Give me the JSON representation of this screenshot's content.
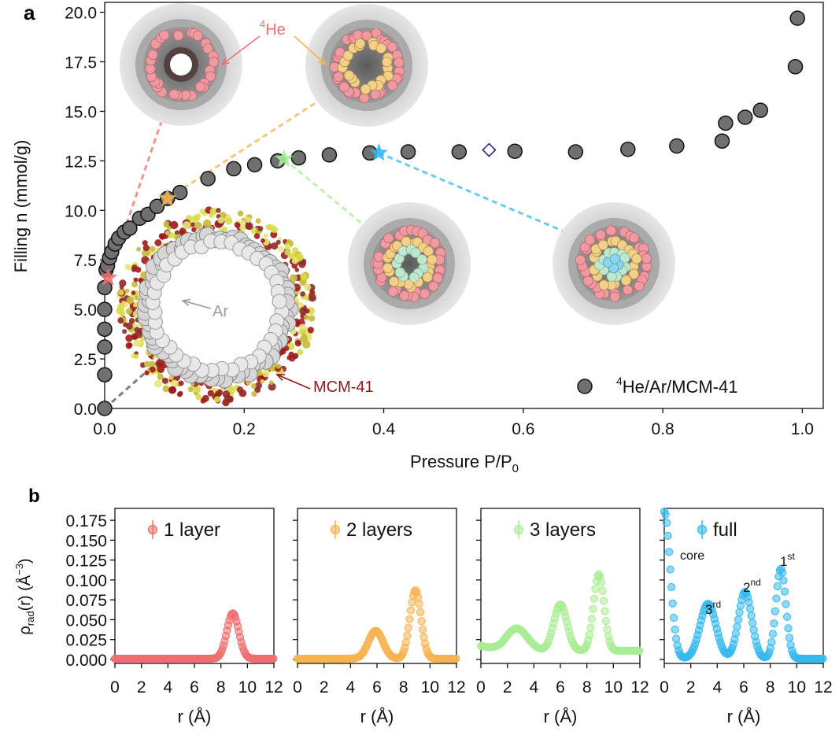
{
  "panel_a_label": "a",
  "panel_b_label": "b",
  "colors": {
    "main_points": "#707070",
    "layer1": "#ee6f6f",
    "layer2": "#f6b350",
    "layer3": "#a9ec95",
    "full": "#37b8ef",
    "mcm_label": "#8b1a1a",
    "ar_label": "#9a9a9a",
    "diamond": "#1a1a7a"
  },
  "icons": {
    "pore_snapshot": "pore-snapshot-icon",
    "mcm_pore": "mcm41-pore-icon",
    "star": "star-marker-icon",
    "diamond": "diamond-marker-icon"
  },
  "annotations": {
    "he4_sup": "4",
    "he4_text": "He",
    "ar": "Ar",
    "mcm": "MCM-41"
  },
  "chart_data": [
    {
      "type": "scatter",
      "panel": "a",
      "xlabel": "Pressure  P/P",
      "xlabel_sub": "0",
      "ylabel": "Filling  n (mmol/g)",
      "xlim": [
        0.0,
        1.03
      ],
      "ylim": [
        0.0,
        20.5
      ],
      "xticks": [
        "0.0",
        "0.2",
        "0.4",
        "0.6",
        "0.8",
        "1.0"
      ],
      "yticks": [
        "0.0",
        "2.5",
        "5.0",
        "7.5",
        "10.0",
        "12.5",
        "15.0",
        "17.5",
        "20.0"
      ],
      "legend": {
        "sup": "4",
        "text": "He/Ar/MCM-41",
        "placement": "lower right"
      },
      "series": [
        {
          "name": "4He/Ar/MCM-41",
          "x": [
            0.0,
            0.0,
            0.0,
            0.0,
            0.0,
            0.0,
            0.002,
            0.004,
            0.007,
            0.01,
            0.015,
            0.02,
            0.028,
            0.036,
            0.05,
            0.062,
            0.075,
            0.09,
            0.108,
            0.148,
            0.185,
            0.215,
            0.248,
            0.278,
            0.322,
            0.38,
            0.435,
            0.508,
            0.588,
            0.675,
            0.75,
            0.82,
            0.885,
            0.89,
            0.918,
            0.94,
            0.99,
            0.993
          ],
          "y": [
            0.0,
            1.7,
            3.1,
            4.0,
            5.0,
            6.1,
            7.0,
            7.2,
            7.6,
            7.9,
            8.3,
            8.6,
            8.9,
            9.1,
            9.6,
            9.8,
            10.2,
            10.6,
            10.9,
            11.6,
            12.1,
            12.3,
            12.5,
            12.65,
            12.8,
            12.9,
            12.95,
            12.95,
            12.98,
            12.95,
            13.08,
            13.25,
            13.5,
            14.4,
            14.7,
            15.05,
            17.25,
            19.7
          ]
        }
      ],
      "highlight_stars": [
        {
          "x": 0.005,
          "y": 6.6,
          "color_key": "layer1"
        },
        {
          "x": 0.09,
          "y": 10.6,
          "color_key": "layer2"
        },
        {
          "x": 0.257,
          "y": 12.6,
          "color_key": "layer3"
        },
        {
          "x": 0.393,
          "y": 12.9,
          "color_key": "full"
        }
      ],
      "open_diamond": {
        "x": 0.551,
        "y": 13.05
      }
    },
    {
      "type": "scatter",
      "panel": "b",
      "ylabel_main": "ρ",
      "ylabel_sub": "rad",
      "ylabel_rest": "(r) (Å",
      "ylabel_exp": "−3",
      "ylabel_close": ")",
      "xlabel": "r (Å)",
      "xlim": [
        0,
        12
      ],
      "ylim": [
        -0.005,
        0.19
      ],
      "xticks": [
        "0",
        "2",
        "4",
        "6",
        "8",
        "10",
        "12"
      ],
      "yticks": [
        "0.000",
        "0.025",
        "0.050",
        "0.075",
        "0.100",
        "0.125",
        "0.150",
        "0.175"
      ],
      "series": [
        {
          "name": "1 layer",
          "color_key": "layer1",
          "peaks": [
            {
              "mu": 8.9,
              "amp": 0.057,
              "sigma": 0.45
            }
          ],
          "baseline": 0.001,
          "core": 0
        },
        {
          "name": "2 layers",
          "color_key": "layer2",
          "peaks": [
            {
              "mu": 5.9,
              "amp": 0.035,
              "sigma": 0.55
            },
            {
              "mu": 8.9,
              "amp": 0.086,
              "sigma": 0.42
            }
          ],
          "baseline": 0.001,
          "core": 0
        },
        {
          "name": "3 layers",
          "color_key": "layer3",
          "peaks": [
            {
              "mu": 2.7,
              "amp": 0.028,
              "sigma": 0.8
            },
            {
              "mu": 6.0,
              "amp": 0.058,
              "sigma": 0.5
            },
            {
              "mu": 8.9,
              "amp": 0.096,
              "sigma": 0.4
            }
          ],
          "baseline": 0.011,
          "core": 0
        },
        {
          "name": "full",
          "color_key": "full",
          "peaks": [
            {
              "mu": 3.3,
              "amp": 0.069,
              "sigma": 0.6
            },
            {
              "mu": 6.1,
              "amp": 0.084,
              "sigma": 0.5
            },
            {
              "mu": 8.8,
              "amp": 0.113,
              "sigma": 0.38
            }
          ],
          "baseline": 0.001,
          "core": 0.185,
          "labels": [
            {
              "text": "core"
            },
            {
              "text": "3",
              "sup": "rd"
            },
            {
              "text": "2",
              "sup": "nd"
            },
            {
              "text": "1",
              "sup": "st"
            }
          ]
        }
      ]
    }
  ]
}
